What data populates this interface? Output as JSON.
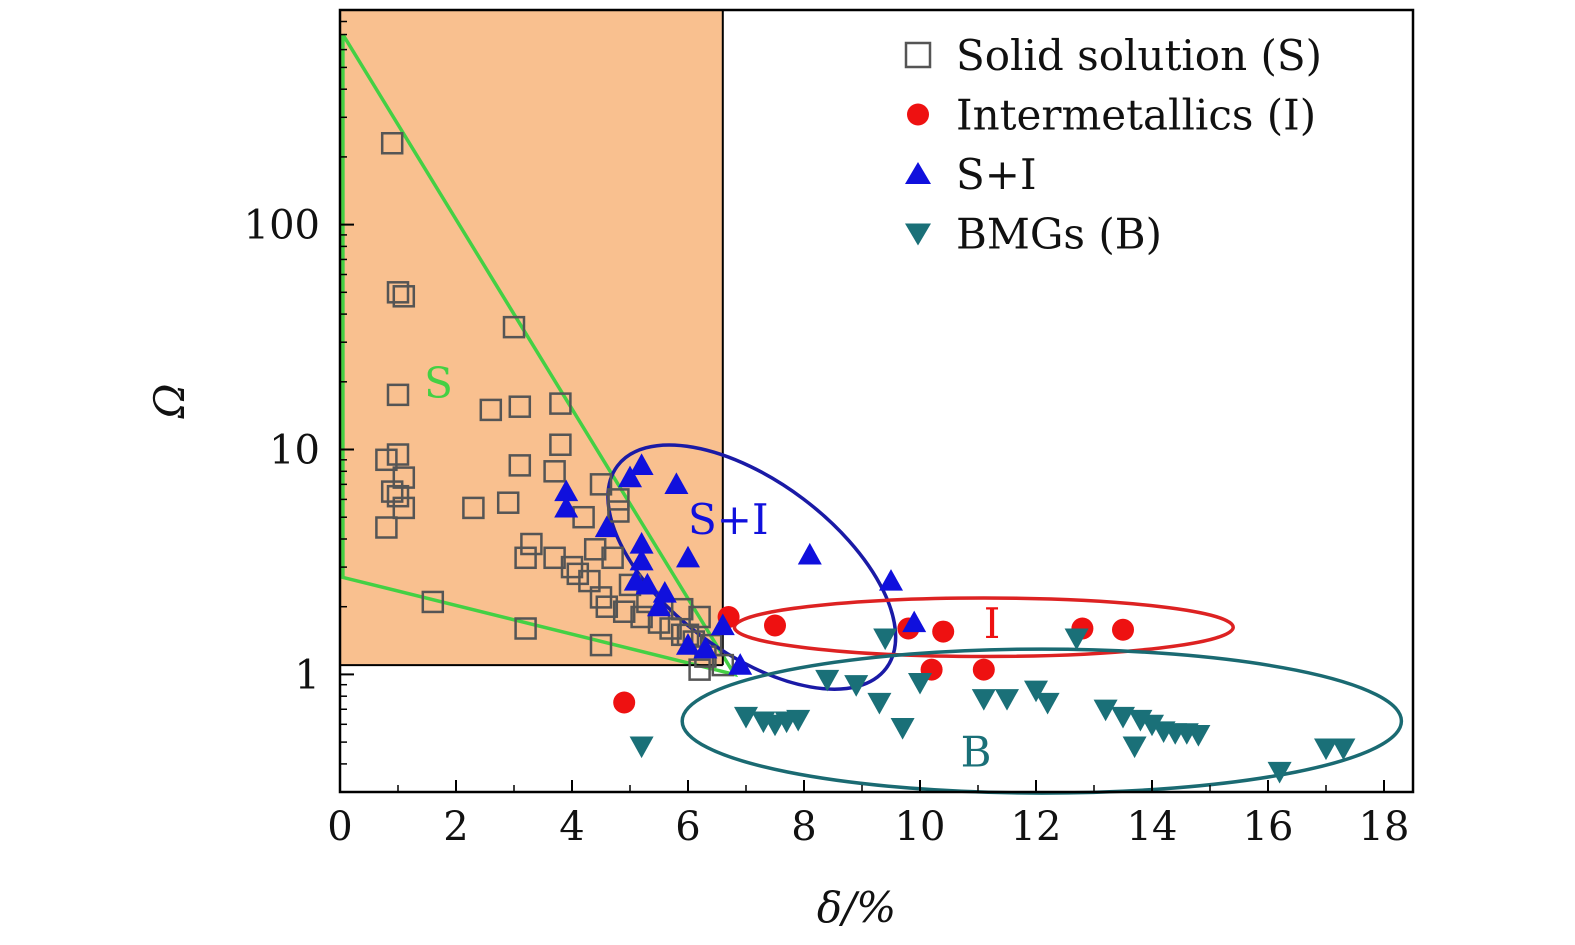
{
  "chart_data": {
    "type": "scatter",
    "xlabel": "δ/%",
    "ylabel": "Ω",
    "xlim": [
      0,
      18.5
    ],
    "ylim": [
      0.3,
      900
    ],
    "yscale": "log",
    "x_ticks": [
      0,
      2,
      4,
      6,
      8,
      10,
      12,
      14,
      16,
      18
    ],
    "x_tick_labels": [
      "0",
      "2",
      "4",
      "6",
      "8",
      "10",
      "12",
      "14",
      "16",
      "18"
    ],
    "y_ticks": [
      1,
      10,
      100
    ],
    "y_tick_labels": [
      "1",
      "10",
      "100"
    ],
    "colors": {
      "solid_solution": "#555555",
      "intermetallics": "#ee1111",
      "s_plus_i": "#1010dd",
      "bmgs": "#1a7078",
      "s_region_fill": "#f9c08f",
      "s_boundary": "#44d044",
      "i_ellipse": "#dd2222",
      "si_ellipse": "#1a1aa6",
      "b_ellipse": "#1a6a72"
    },
    "legend": [
      {
        "label": "Solid solution (S)",
        "marker": "square"
      },
      {
        "label": "Intermetallics (I)",
        "marker": "circle"
      },
      {
        "label": "S+I",
        "marker": "triangle-up"
      },
      {
        "label": "BMGs (B)",
        "marker": "triangle-down"
      }
    ],
    "region_labels": [
      "S",
      "S+I",
      "I",
      "B"
    ],
    "s_region": {
      "x_max": 6.6,
      "y_min": 1.1
    },
    "s_boundary": [
      [
        0.05,
        700
      ],
      [
        0.05,
        2.7
      ],
      [
        6.8,
        1.0
      ],
      [
        0.05,
        700
      ]
    ],
    "ellipses": {
      "si": {
        "cx": 7.1,
        "cy": 3.0,
        "rx_data": 2.9,
        "ry_decades": 0.38,
        "angle_deg": 37
      },
      "i": {
        "cx": 11.1,
        "cy": 1.62,
        "rx_data": 4.3,
        "ry_decades": 0.13,
        "angle_deg": 0
      },
      "b": {
        "cx": 12.1,
        "cy": 0.62,
        "rx_data": 6.2,
        "ry_decades": 0.32,
        "angle_deg": 0
      }
    },
    "series": [
      {
        "name": "Solid solution (S)",
        "points": [
          [
            0.9,
            230
          ],
          [
            1.0,
            50
          ],
          [
            1.1,
            48
          ],
          [
            3.0,
            35
          ],
          [
            1.0,
            17.5
          ],
          [
            2.6,
            15
          ],
          [
            3.1,
            15.5
          ],
          [
            3.8,
            16
          ],
          [
            3.8,
            10.5
          ],
          [
            0.8,
            9
          ],
          [
            1.0,
            9.5
          ],
          [
            1.1,
            7.5
          ],
          [
            0.9,
            6.5
          ],
          [
            1.0,
            6.2
          ],
          [
            1.1,
            5.5
          ],
          [
            0.8,
            4.5
          ],
          [
            3.1,
            8.5
          ],
          [
            3.7,
            8
          ],
          [
            4.5,
            7
          ],
          [
            4.8,
            6
          ],
          [
            2.3,
            5.5
          ],
          [
            2.9,
            5.8
          ],
          [
            4.8,
            5.3
          ],
          [
            4.2,
            5
          ],
          [
            3.3,
            3.8
          ],
          [
            3.2,
            3.3
          ],
          [
            3.7,
            3.3
          ],
          [
            4.0,
            3.0
          ],
          [
            4.1,
            2.8
          ],
          [
            4.3,
            2.6
          ],
          [
            4.5,
            2.2
          ],
          [
            4.6,
            2.0
          ],
          [
            4.9,
            1.9
          ],
          [
            5.2,
            1.8
          ],
          [
            5.5,
            1.7
          ],
          [
            5.7,
            1.6
          ],
          [
            5.9,
            1.5
          ],
          [
            6.1,
            1.4
          ],
          [
            6.4,
            1.35
          ],
          [
            6.3,
            1.2
          ],
          [
            6.6,
            1.1
          ],
          [
            6.2,
            1.05
          ],
          [
            1.6,
            2.1
          ],
          [
            3.2,
            1.6
          ],
          [
            4.5,
            1.35
          ],
          [
            6.0,
            1.5
          ],
          [
            5.0,
            2.5
          ],
          [
            5.3,
            2.1
          ],
          [
            4.7,
            3.3
          ],
          [
            4.4,
            3.6
          ],
          [
            6.2,
            1.8
          ],
          [
            5.9,
            1.95
          ]
        ]
      },
      {
        "name": "Intermetallics (I)",
        "points": [
          [
            6.7,
            1.8
          ],
          [
            7.5,
            1.65
          ],
          [
            9.8,
            1.6
          ],
          [
            10.4,
            1.55
          ],
          [
            12.8,
            1.6
          ],
          [
            13.5,
            1.58
          ],
          [
            10.2,
            1.05
          ],
          [
            11.1,
            1.05
          ],
          [
            4.9,
            0.75
          ]
        ]
      },
      {
        "name": "S+I",
        "points": [
          [
            5.2,
            8.5
          ],
          [
            5.0,
            7.5
          ],
          [
            5.8,
            7
          ],
          [
            3.9,
            6.5
          ],
          [
            3.9,
            5.5
          ],
          [
            4.6,
            4.5
          ],
          [
            5.2,
            3.8
          ],
          [
            5.2,
            3.2
          ],
          [
            6.0,
            3.3
          ],
          [
            5.1,
            2.6
          ],
          [
            5.3,
            2.5
          ],
          [
            5.6,
            2.3
          ],
          [
            5.5,
            2.0
          ],
          [
            6.0,
            1.35
          ],
          [
            6.3,
            1.3
          ],
          [
            6.6,
            1.65
          ],
          [
            6.9,
            1.1
          ],
          [
            8.1,
            3.4
          ],
          [
            9.5,
            2.6
          ],
          [
            9.9,
            1.7
          ]
        ]
      },
      {
        "name": "BMGs (B)",
        "points": [
          [
            9.4,
            1.45
          ],
          [
            12.7,
            1.45
          ],
          [
            8.4,
            0.95
          ],
          [
            8.9,
            0.9
          ],
          [
            10.0,
            0.92
          ],
          [
            11.1,
            0.78
          ],
          [
            11.5,
            0.78
          ],
          [
            12.0,
            0.85
          ],
          [
            12.2,
            0.75
          ],
          [
            9.3,
            0.75
          ],
          [
            9.7,
            0.58
          ],
          [
            7.0,
            0.65
          ],
          [
            7.3,
            0.62
          ],
          [
            7.5,
            0.6
          ],
          [
            7.7,
            0.62
          ],
          [
            7.9,
            0.63
          ],
          [
            13.2,
            0.7
          ],
          [
            13.5,
            0.65
          ],
          [
            13.8,
            0.63
          ],
          [
            14.0,
            0.6
          ],
          [
            14.2,
            0.56
          ],
          [
            14.4,
            0.55
          ],
          [
            14.6,
            0.55
          ],
          [
            14.8,
            0.54
          ],
          [
            13.7,
            0.48
          ],
          [
            5.2,
            0.48
          ],
          [
            16.2,
            0.37
          ],
          [
            17.0,
            0.47
          ],
          [
            17.3,
            0.47
          ]
        ]
      }
    ]
  }
}
